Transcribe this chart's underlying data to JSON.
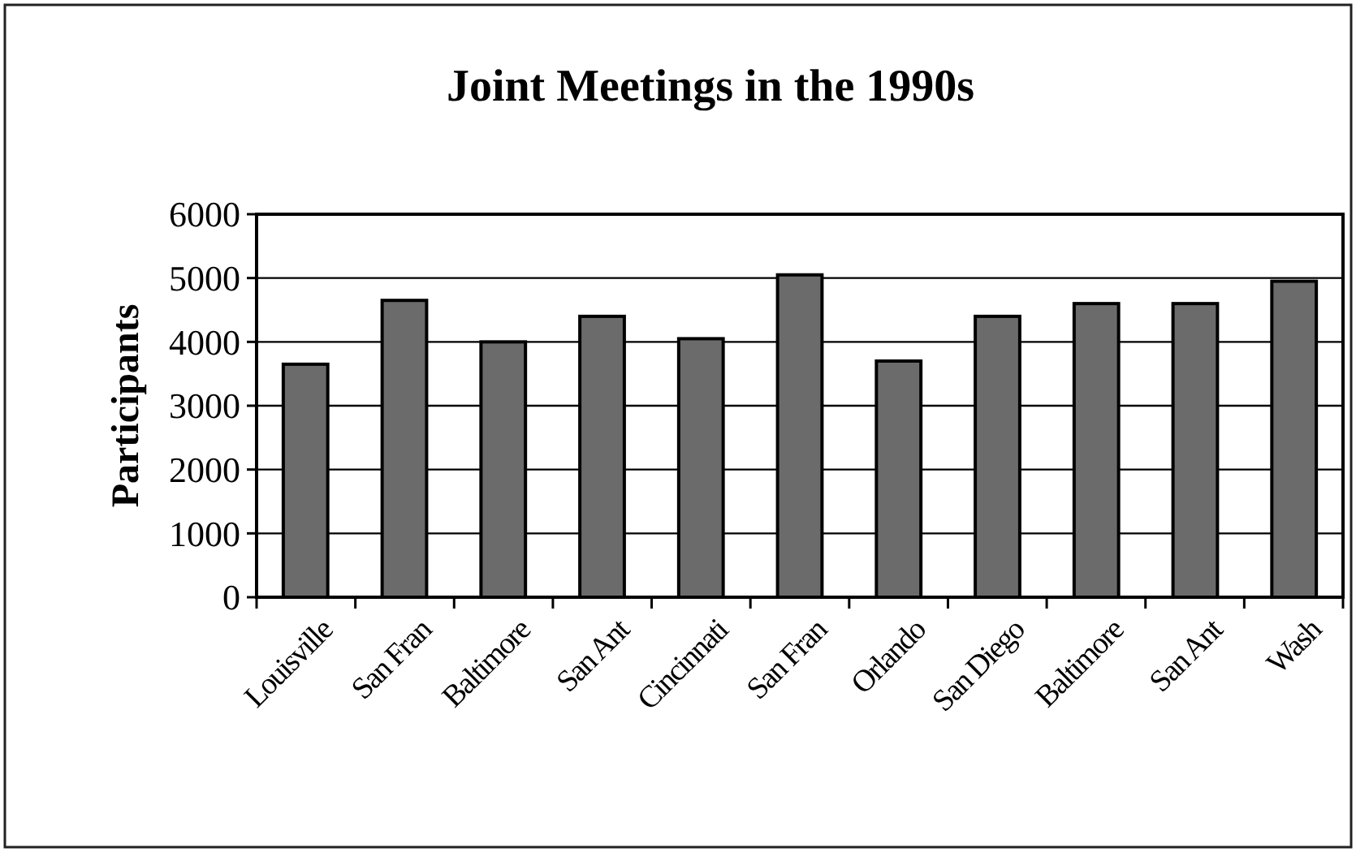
{
  "chart_data": {
    "type": "bar",
    "title": "Joint Meetings in the 1990s",
    "ylabel": "Participants",
    "categories": [
      "Louisville",
      "San Fran",
      "Baltimore",
      "San Ant",
      "Cincinnati",
      "San Fran",
      "Orlando",
      "San Diego",
      "Baltimore",
      "San Ant",
      "Wash"
    ],
    "values": [
      3650,
      4650,
      4000,
      4400,
      4050,
      5050,
      3700,
      4400,
      4600,
      4600,
      4950
    ],
    "color": "#6b6b6b",
    "ylim": [
      0,
      6000
    ],
    "yticks": [
      0,
      1000,
      2000,
      3000,
      4000,
      5000,
      6000
    ],
    "grid": "y"
  }
}
